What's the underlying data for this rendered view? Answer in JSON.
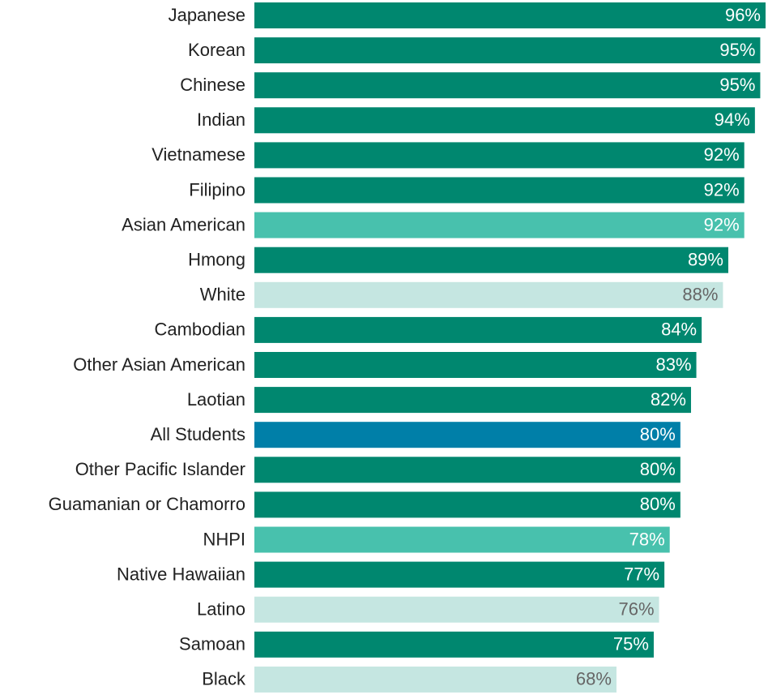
{
  "chart_data": {
    "type": "barh",
    "categories": [
      "Japanese",
      "Korean",
      "Chinese",
      "Indian",
      "Vietnamese",
      "Filipino",
      "Asian American",
      "Hmong",
      "White",
      "Cambodian",
      "Other Asian American",
      "Laotian",
      "All Students",
      "Other Pacific Islander",
      "Guamanian or Chamorro",
      "NHPI",
      "Native Hawaiian",
      "Latino",
      "Samoan",
      "Black"
    ],
    "values": [
      96,
      95,
      95,
      94,
      92,
      92,
      92,
      89,
      88,
      84,
      83,
      82,
      80,
      80,
      80,
      78,
      77,
      76,
      75,
      68
    ],
    "value_labels": [
      "96%",
      "95%",
      "95%",
      "94%",
      "92%",
      "92%",
      "92%",
      "89%",
      "88%",
      "84%",
      "83%",
      "82%",
      "80%",
      "80%",
      "80%",
      "78%",
      "77%",
      "76%",
      "75%",
      "68%"
    ],
    "colors": [
      "#00876f",
      "#00876f",
      "#00876f",
      "#00876f",
      "#00876f",
      "#00876f",
      "#48c1ad",
      "#00876f",
      "#c5e6e1",
      "#00876f",
      "#00876f",
      "#00876f",
      "#007fa8",
      "#00876f",
      "#00876f",
      "#48c1ad",
      "#00876f",
      "#c5e6e1",
      "#00876f",
      "#c5e6e1"
    ],
    "xlim": [
      0,
      96
    ]
  }
}
